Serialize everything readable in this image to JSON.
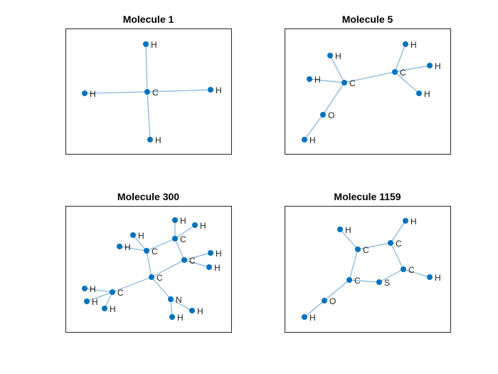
{
  "panels": [
    {
      "title": "Molecule 1",
      "nodes": [
        "C",
        "H",
        "H",
        "H",
        "H"
      ]
    },
    {
      "title": "Molecule 5",
      "nodes": [
        "C",
        "C",
        "H",
        "H",
        "H",
        "H",
        "H",
        "O",
        "H"
      ]
    },
    {
      "title": "Molecule 300",
      "nodes": [
        "C",
        "C",
        "H",
        "H",
        "C",
        "H",
        "H",
        "C",
        "H",
        "H",
        "C",
        "H",
        "H",
        "H",
        "N",
        "H",
        "H"
      ]
    },
    {
      "title": "Molecule 1159",
      "nodes": [
        "H",
        "C",
        "C",
        "H",
        "C",
        "H",
        "S",
        "C",
        "O",
        "H"
      ]
    }
  ]
}
